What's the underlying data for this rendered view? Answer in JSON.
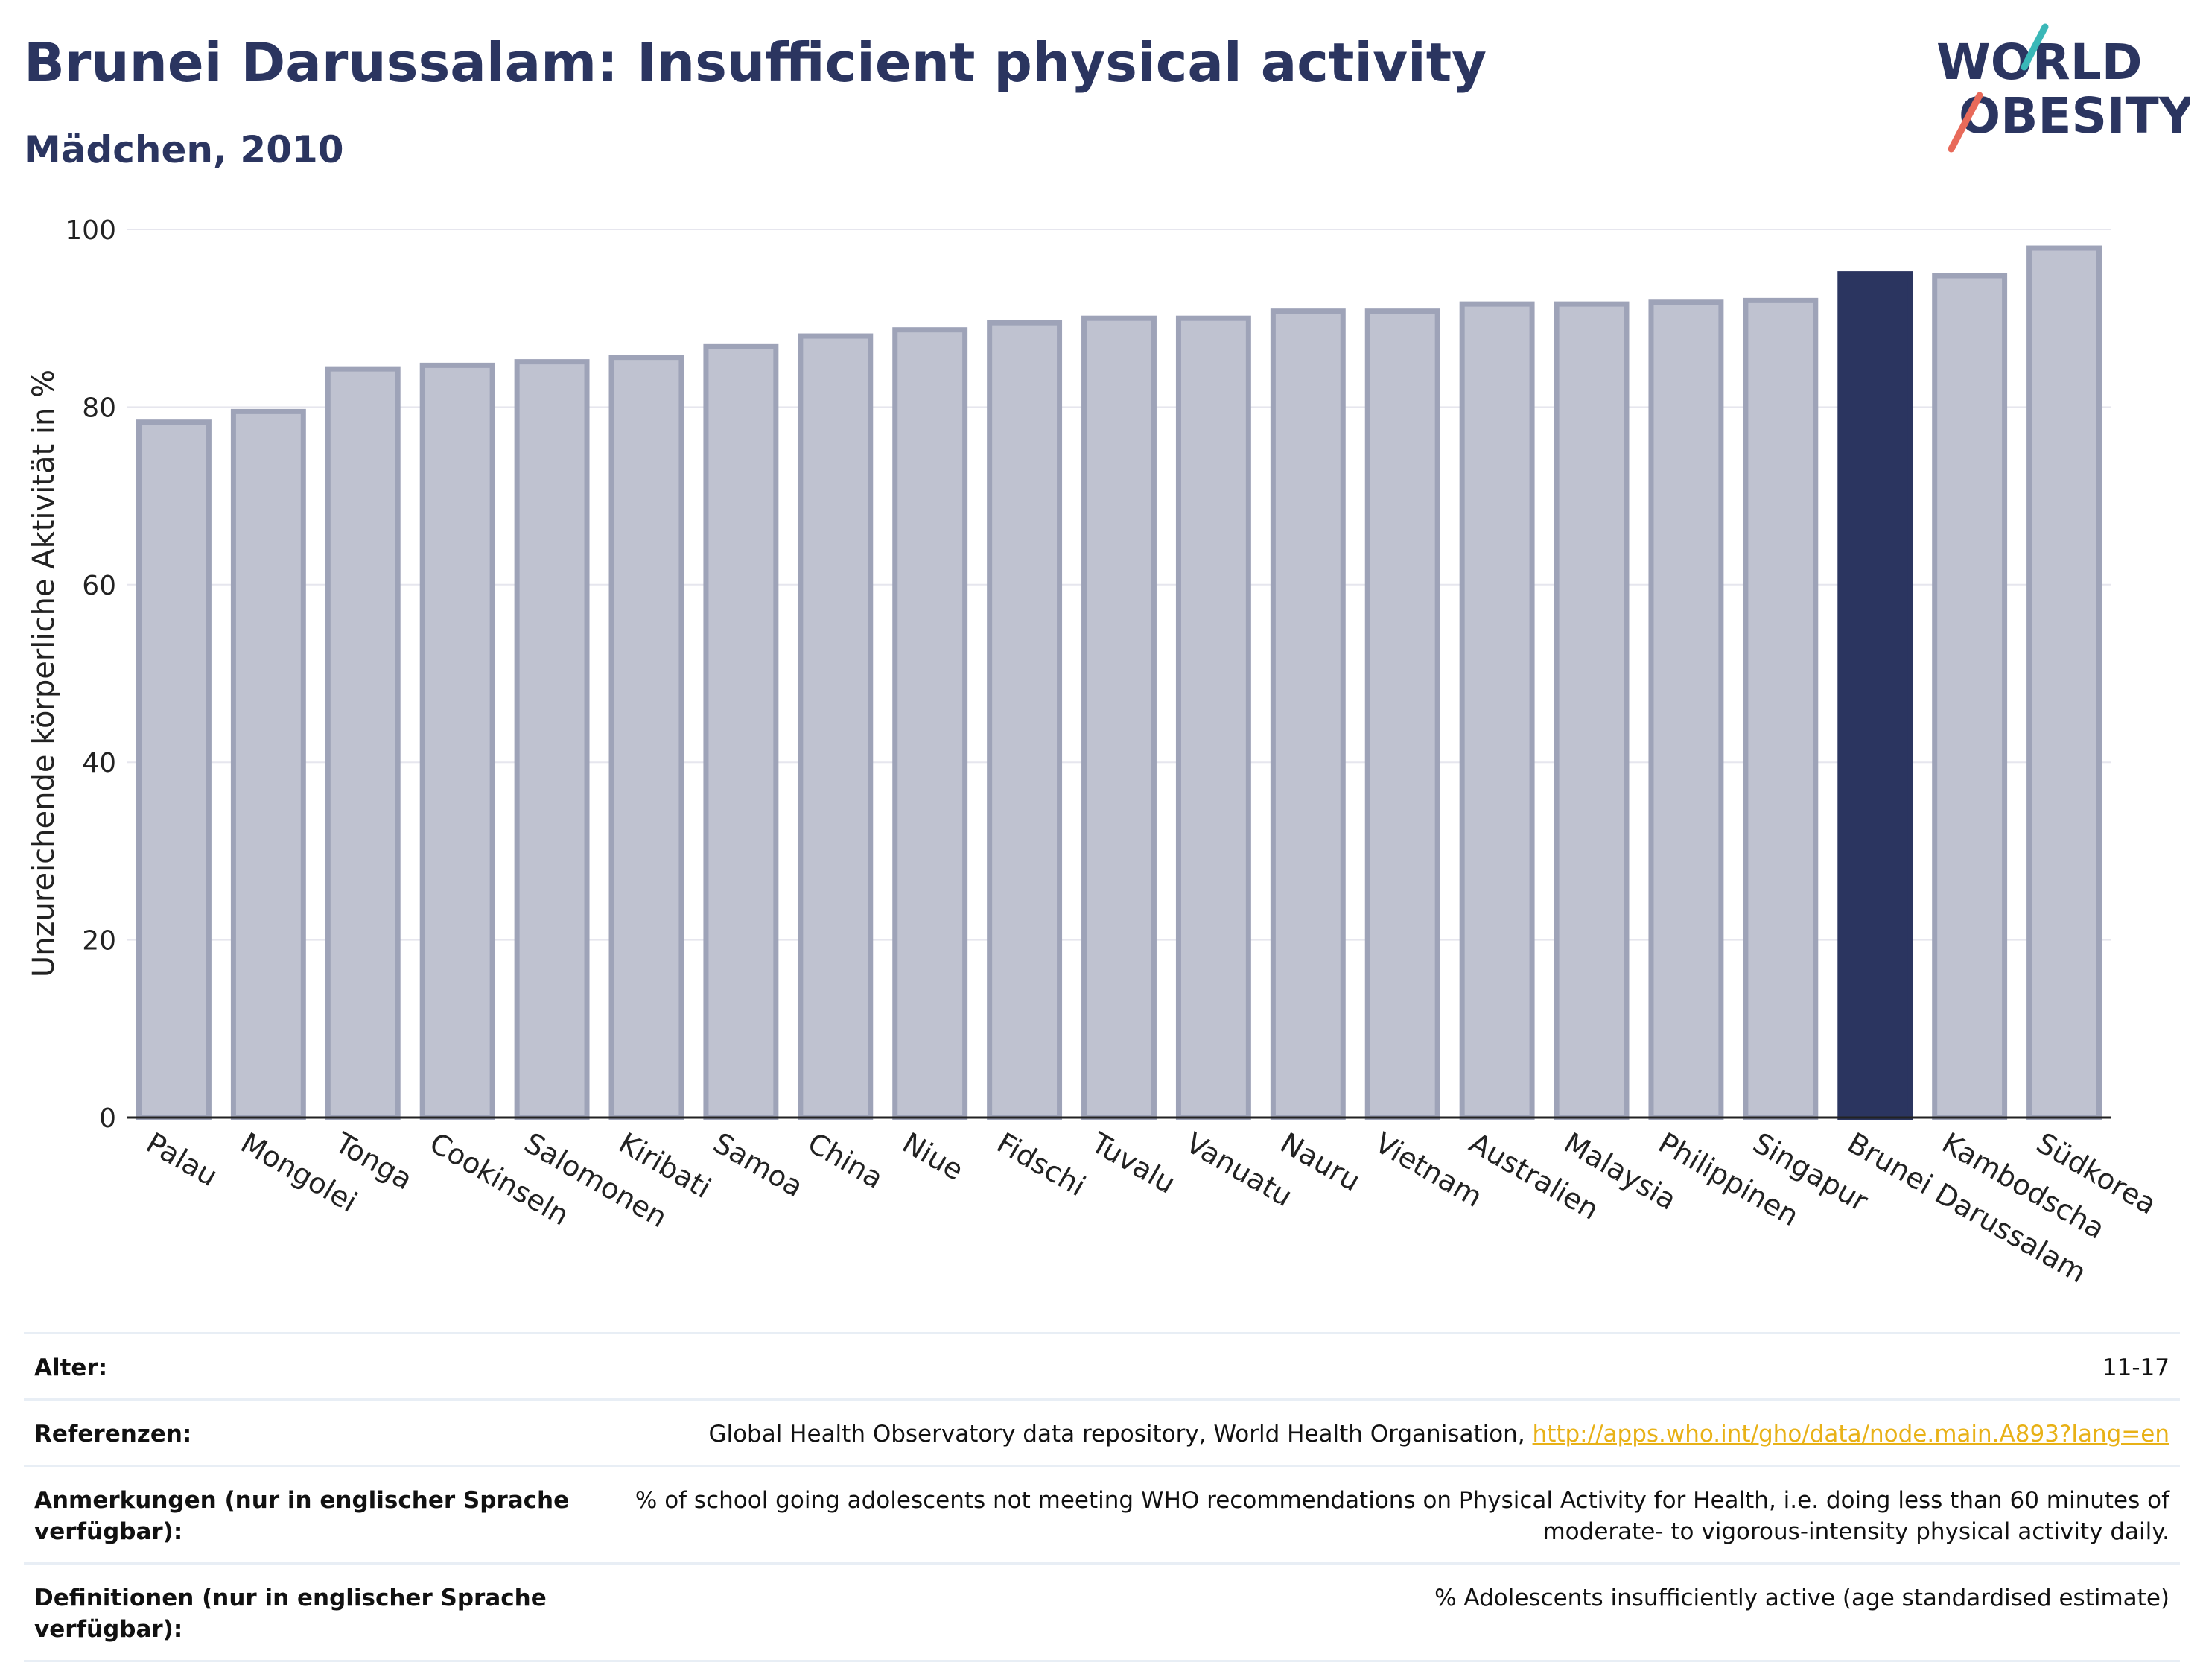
{
  "header": {
    "title": "Brunei Darussalam: Insufficient physical activity",
    "subtitle": "Mädchen, 2010"
  },
  "logo": {
    "line1": "WORLD",
    "line2": "OBESITY",
    "colors": {
      "text": "#2b3560",
      "slash_teal": "#3ab8b8",
      "slash_red": "#e86a5a"
    }
  },
  "colors": {
    "bar_fill": "#bfc2d0",
    "bar_stroke": "#9ea3b8",
    "highlight": "#2b3560",
    "grid": "#e6e6ee"
  },
  "chart_data": {
    "type": "bar",
    "title": "Brunei Darussalam: Insufficient physical activity",
    "subtitle": "Mädchen, 2010",
    "ylabel": "Unzureichende körperliche Aktivität in %",
    "xlabel": "",
    "ylim": [
      0,
      100
    ],
    "yticks": [
      0,
      20,
      40,
      60,
      80,
      100
    ],
    "grid": true,
    "categories": [
      "Palau",
      "Mongolei",
      "Tonga",
      "Cookinseln",
      "Salomonen",
      "Kiribati",
      "Samoa",
      "China",
      "Niue",
      "Fidschi",
      "Tuvalu",
      "Vanuatu",
      "Nauru",
      "Vietnam",
      "Australien",
      "Malaysia",
      "Philippinen",
      "Singapur",
      "Brunei Darussalam",
      "Kambodscha",
      "Südkorea"
    ],
    "values": [
      78.3,
      79.5,
      84.3,
      84.7,
      85.1,
      85.6,
      86.8,
      88.0,
      88.7,
      89.5,
      90.0,
      90.0,
      90.8,
      90.8,
      91.6,
      91.6,
      91.8,
      92.0,
      95.0,
      94.8,
      97.9
    ],
    "highlight": "Brunei Darussalam"
  },
  "meta": [
    {
      "key": "Alter:",
      "value": "11-17"
    },
    {
      "key": "Referenzen:",
      "value": "Global Health Observatory data repository, World Health Organisation,",
      "link": "http://apps.who.int/gho/data/node.main.A893?lang=en"
    },
    {
      "key": "Anmerkungen (nur in englischer Sprache verfügbar):",
      "value": "% of school going adolescents not meeting WHO recommendations on Physical Activity for Health, i.e. doing less than 60 minutes of moderate- to vigorous-intensity physical activity daily."
    },
    {
      "key": "Definitionen (nur in englischer Sprache verfügbar):",
      "value": "% Adolescents insufficiently active (age standardised estimate)"
    }
  ]
}
